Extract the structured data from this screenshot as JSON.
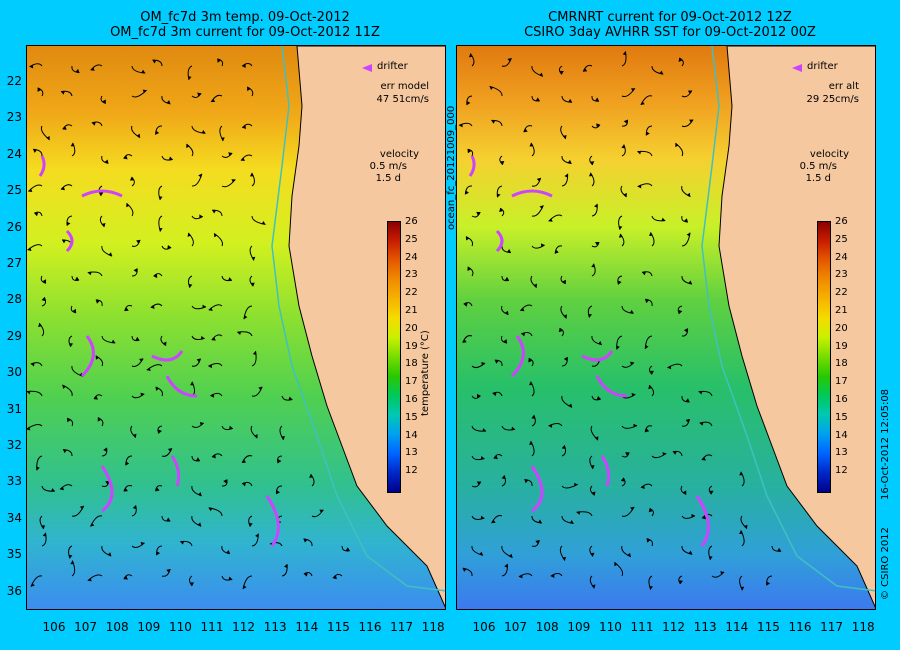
{
  "titles": {
    "left_line1": "OM_fc7d 3m temp. 09-Oct-2012",
    "left_line2": "OM_fc7d 3m current for 09-Oct-2012 11Z",
    "right_line1": "CMRNRT current for 09-Oct-2012 12Z",
    "right_line2": "CSIRO 3day AVHRR SST for 09-Oct-2012 00Z"
  },
  "y_ticks": [
    "22",
    "23",
    "24",
    "25",
    "26",
    "27",
    "28",
    "29",
    "30",
    "31",
    "32",
    "33",
    "34",
    "35",
    "36"
  ],
  "x_ticks": [
    "106",
    "107",
    "108",
    "109",
    "110",
    "111",
    "112",
    "113",
    "114",
    "115",
    "116",
    "117",
    "118"
  ],
  "legend": {
    "drifter": "drifter",
    "err_left_label": "err model",
    "err_left_value": "47 51cm/s",
    "err_right_label": "err alt",
    "err_right_value": "29 25cm/s",
    "velocity_label": "velocity",
    "velocity_scale": "0.5 m/s",
    "velocity_days": "1.5 d"
  },
  "colorbar": {
    "title": "temperature (°C)",
    "ticks": [
      "26",
      "25",
      "24",
      "23",
      "22",
      "21",
      "20",
      "19",
      "18",
      "17",
      "16",
      "15",
      "14",
      "13",
      "12"
    ],
    "colors": [
      "#8b0000",
      "#c81e00",
      "#e45a00",
      "#f08c00",
      "#f5b400",
      "#f5dc00",
      "#c8f000",
      "#78dc00",
      "#28c800",
      "#00c85a",
      "#00c8b4",
      "#00a0f0",
      "#0064ff",
      "#0028c8",
      "#00008b"
    ]
  },
  "side_labels": {
    "left": "ocean_fc_20121009_000",
    "right": "16-Oct-2012 12:05:08",
    "copyright": "© CSIRO 2012"
  },
  "colors": {
    "background": "#00ccff",
    "land": "#f5c8a0",
    "drifter": "#cc44ff"
  }
}
